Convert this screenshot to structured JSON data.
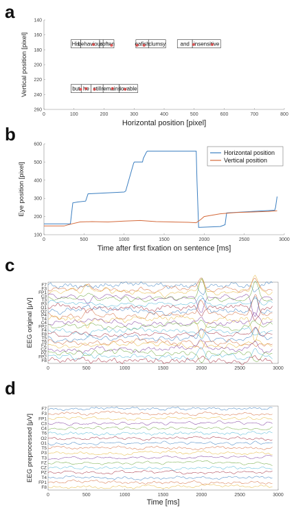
{
  "letters": {
    "a": "a",
    "b": "b",
    "c": "c",
    "d": "d"
  },
  "chart_data": [
    {
      "type": "scatter",
      "panel": "a",
      "xlabel": "Horizontal position [pixel]",
      "ylabel": "Vertical position [pixel]",
      "xlim": [
        0,
        800
      ],
      "ylim": [
        140,
        260
      ],
      "y_reversed": true,
      "xticks": [
        0,
        100,
        200,
        300,
        400,
        500,
        600,
        700,
        800
      ],
      "yticks": [
        140,
        160,
        180,
        200,
        220,
        240,
        260
      ],
      "words": [
        {
          "text": "His",
          "x0": 90,
          "x1": 122,
          "y": 172
        },
        {
          "text": "behaviour",
          "x0": 122,
          "x1": 185,
          "y": 172
        },
        {
          "text": "is",
          "x0": 185,
          "x1": 197,
          "y": 172
        },
        {
          "text": "often",
          "x0": 197,
          "x1": 233,
          "y": 172
        },
        {
          "text": "oafish",
          "x0": 306,
          "x1": 348,
          "y": 172
        },
        {
          "text": "clumsy",
          "x0": 348,
          "x1": 405,
          "y": 172
        },
        {
          "text": "and",
          "x0": 444,
          "x1": 494,
          "y": 172
        },
        {
          "text": "insensitive",
          "x0": 494,
          "x1": 588,
          "y": 172
        },
        {
          "text": "but",
          "x0": 90,
          "x1": 124,
          "y": 232
        },
        {
          "text": "he",
          "x0": 124,
          "x1": 157,
          "y": 232
        },
        {
          "text": "still",
          "x0": 157,
          "x1": 197,
          "y": 232
        },
        {
          "text": "remains",
          "x0": 197,
          "x1": 250,
          "y": 232
        },
        {
          "text": "lovable",
          "x0": 250,
          "x1": 312,
          "y": 232
        }
      ],
      "fixations": [
        {
          "x": 165,
          "y": 173
        },
        {
          "x": 225,
          "y": 174
        },
        {
          "x": 310,
          "y": 174
        },
        {
          "x": 333,
          "y": 174
        },
        {
          "x": 498,
          "y": 173
        },
        {
          "x": 560,
          "y": 173
        },
        {
          "x": 122,
          "y": 233
        },
        {
          "x": 140,
          "y": 232
        },
        {
          "x": 168,
          "y": 233
        },
        {
          "x": 228,
          "y": 232
        },
        {
          "x": 270,
          "y": 233
        }
      ]
    },
    {
      "type": "line",
      "panel": "b",
      "xlabel": "Time after first fixation on sentence [ms]",
      "ylabel": "Eye position [pixel]",
      "xlim": [
        0,
        3000
      ],
      "ylim": [
        100,
        600
      ],
      "xticks": [
        0,
        500,
        1000,
        1500,
        2000,
        2500,
        3000
      ],
      "yticks": [
        100,
        200,
        300,
        400,
        500,
        600
      ],
      "legend_position": "top-right",
      "series": [
        {
          "name": "Horizontal position",
          "color": "#3a7ec0",
          "x": [
            0,
            330,
            360,
            420,
            520,
            550,
            1000,
            1020,
            1120,
            1130,
            1230,
            1240,
            1280,
            1290,
            1900,
            1910,
            1930,
            2200,
            2260,
            2280,
            2880,
            2890,
            2910
          ],
          "y": [
            160,
            160,
            275,
            280,
            285,
            325,
            335,
            340,
            495,
            500,
            500,
            520,
            555,
            560,
            560,
            400,
            140,
            145,
            155,
            220,
            235,
            250,
            310
          ]
        },
        {
          "name": "Vertical position",
          "color": "#d4693a",
          "x": [
            0,
            250,
            350,
            450,
            600,
            800,
            1000,
            1200,
            1400,
            1600,
            1800,
            1900,
            1960,
            2000,
            2200,
            2400,
            2600,
            2800,
            2910
          ],
          "y": [
            148,
            148,
            160,
            170,
            172,
            170,
            175,
            178,
            172,
            170,
            168,
            166,
            185,
            200,
            215,
            222,
            225,
            228,
            232
          ]
        }
      ]
    },
    {
      "type": "line",
      "panel": "c",
      "xlabel": "",
      "ylabel": "EEG original [μV]",
      "xlim": [
        0,
        3000
      ],
      "xticks": [
        0,
        500,
        1000,
        1500,
        2000,
        2500,
        3000
      ],
      "channels": [
        "F7",
        "F3",
        "FP1",
        "C3",
        "T3",
        "P3",
        "O1",
        "O2",
        "P4",
        "T4",
        "C4",
        "FP2",
        "F4",
        "F8",
        "T5",
        "T6",
        "FZ",
        "CZ",
        "PZ",
        "FP2",
        "F8"
      ],
      "events": [
        {
          "x": 2000,
          "amp": 1.0
        },
        {
          "x": 2700,
          "amp": 1.1
        },
        {
          "x": 520,
          "amp": 0.35
        }
      ],
      "noise": 4.0
    },
    {
      "type": "line",
      "panel": "d",
      "xlabel": "Time [ms]",
      "ylabel": "EEG preprocessed [μV]",
      "xlim": [
        0,
        3000
      ],
      "xticks": [
        0,
        500,
        1000,
        1500,
        2000,
        2500,
        3000
      ],
      "channels": [
        "F7",
        "F3",
        "FP1",
        "C3",
        "C4",
        "T6",
        "O2",
        "O1",
        "T5",
        "P3",
        "T3",
        "FZ",
        "CZ",
        "PZ",
        "T4",
        "FP1",
        "F8"
      ],
      "events": [],
      "noise": 2.2
    }
  ]
}
